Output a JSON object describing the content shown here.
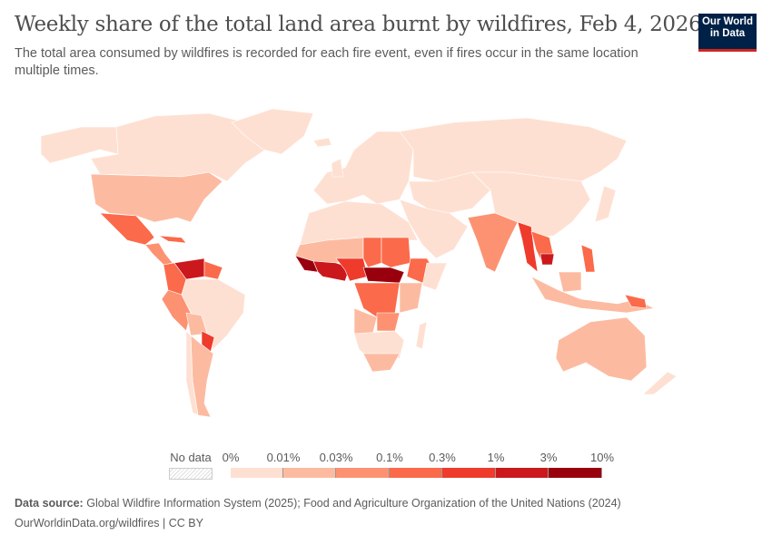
{
  "header": {
    "title": "Weekly share of the total land area burnt by wildfires, Feb 4, 2026",
    "subtitle": "The total area consumed by wildfires is recorded for each fire event, even if fires occur in the same location multiple times.",
    "logo": "Our World in Data"
  },
  "legend": {
    "no_data_label": "No data",
    "ticks": [
      "0%",
      "0.01%",
      "0.03%",
      "0.1%",
      "0.3%",
      "1%",
      "3%",
      "10%"
    ],
    "colors": [
      "#fee0d2",
      "#fcbba1",
      "#fc9272",
      "#fb6a4a",
      "#ef3b2c",
      "#cb181d",
      "#99000d"
    ]
  },
  "map": {
    "colors": {
      "lowest": "#fee0d2",
      "low": "#fcbba1",
      "mid": "#fc9272",
      "high": "#fb6a4a",
      "higher": "#ef3b2c",
      "very_high": "#cb181d",
      "highest": "#99000d"
    }
  },
  "footer": {
    "source_label": "Data source:",
    "source_text": "Global Wildfire Information System (2025); Food and Agriculture Organization of the United Nations (2024)",
    "link": "OurWorldinData.org/wildfires | CC BY"
  }
}
